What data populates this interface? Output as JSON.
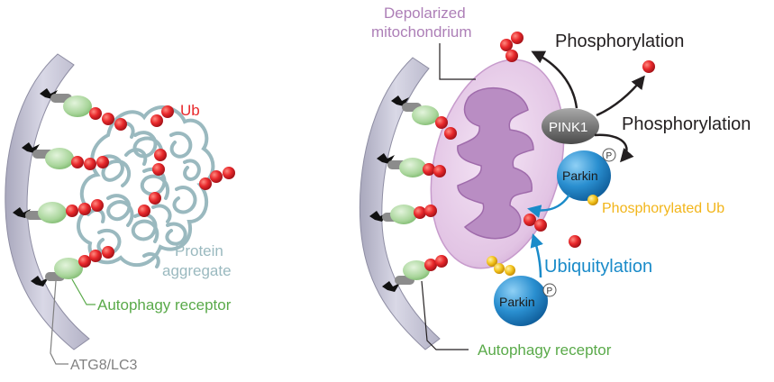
{
  "colors": {
    "ubiquitin_red": "#e8282b",
    "receptor_green": "#a8d59a",
    "membrane_gray": "#c9c8d8",
    "aggregate_teal": "#9ab9bf",
    "mito_purple": "#e4c7e6",
    "parkin_blue": "#1a8bc9",
    "phospho_gold": "#f2b51a"
  },
  "left_panel": {
    "ub_label": "Ub",
    "aggregate_label_line1": "Protein",
    "aggregate_label_line2": "aggregate",
    "receptor_label": "Autophagy receptor",
    "atg_label": "ATG8/LC3"
  },
  "right_panel": {
    "mito_label_line1": "Depolarized",
    "mito_label_line2": "mitochondrium",
    "phosphorylation_top": "Phosphorylation",
    "phosphorylation_mid": "Phosphorylation",
    "pink1_label": "PINK1",
    "parkin_label_top": "Parkin",
    "parkin_label_bottom": "Parkin",
    "phospho_marker": "P",
    "phosphorylated_ub_label": "Phosphorylated Ub",
    "ubiquitylation_label": "Ubiquitylation",
    "receptor_label": "Autophagy receptor"
  }
}
